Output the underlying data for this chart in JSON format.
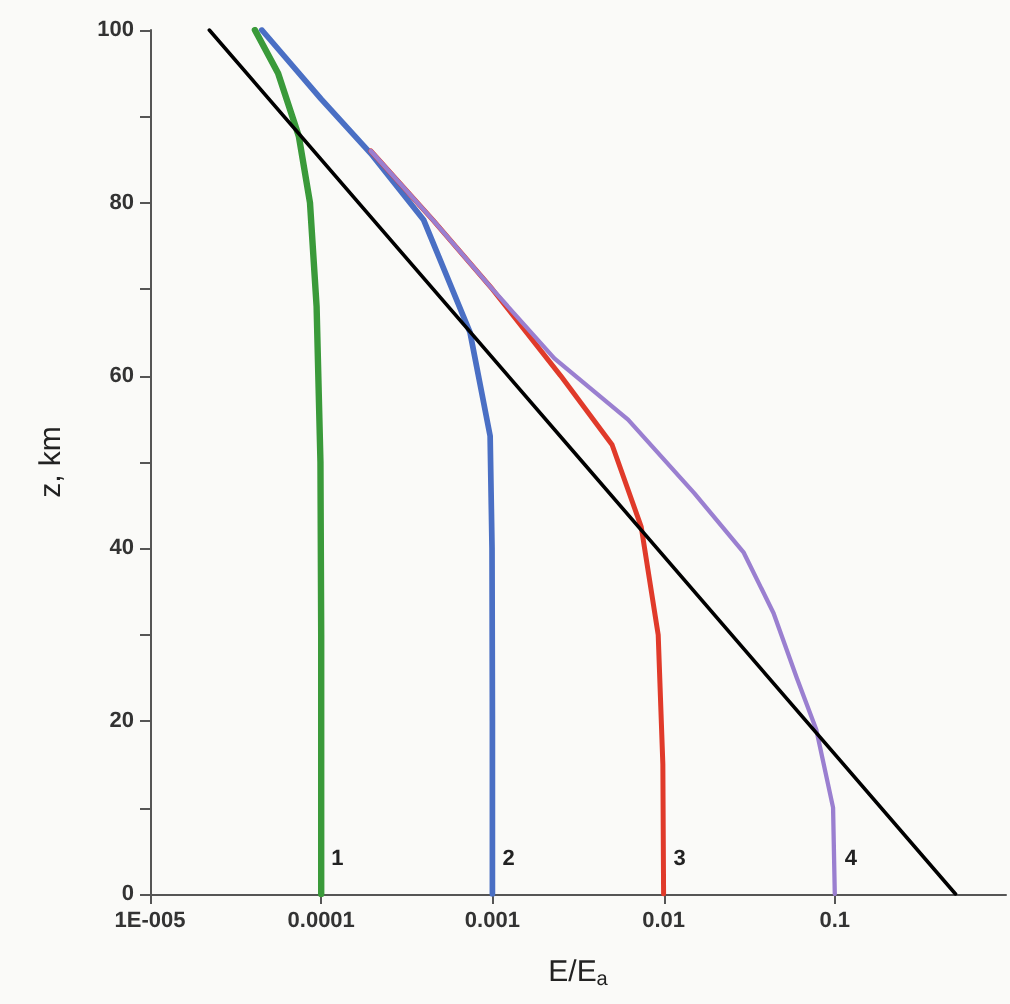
{
  "chart_data": {
    "type": "line",
    "xlabel": "E/E$_{a}$",
    "ylabel": "z, km",
    "log": "x",
    "xlim": [
      1e-05,
      1
    ],
    "ylim": [
      0,
      100
    ],
    "xticks": [
      {
        "value": 1e-05,
        "label": "1E-005"
      },
      0.0001,
      0.001,
      0.01,
      0.1
    ],
    "yticks": [
      0,
      {
        "value": 10,
        "label": null
      },
      20,
      {
        "value": 30,
        "label": null
      },
      40,
      {
        "value": 50,
        "label": null
      },
      60,
      {
        "value": 70,
        "label": null
      },
      80,
      {
        "value": 90,
        "label": null
      },
      100
    ],
    "grid": false,
    "marker": "none",
    "line_style": "solid",
    "series": [
      {
        "color": "#3a9a3a",
        "x": [
          4.1e-05,
          5.6e-05,
          7.4e-05,
          8.6e-05,
          9.4e-05,
          9.9e-05,
          0.0001,
          0.0001
        ],
        "values": [
          100,
          95,
          87.7,
          80,
          68,
          50,
          30,
          0
        ]
      },
      {
        "color": "#4a6fc4",
        "x": [
          4.5e-05,
          0.0001,
          0.000195,
          0.000397,
          0.00074,
          0.00097,
          0.000995,
          0.001,
          0.001
        ],
        "values": [
          100,
          92,
          85.7,
          78,
          65,
          53,
          40,
          20,
          0
        ]
      },
      {
        "color": "#e03a2a",
        "x": [
          0.000195,
          0.00045,
          0.001,
          0.0025,
          0.005,
          0.0074,
          0.0093,
          0.0099,
          0.01
        ],
        "values": [
          86,
          78,
          70,
          60,
          52,
          42.5,
          30,
          15,
          0
        ]
      },
      {
        "color": "#9a7fd0",
        "x": [
          0.000195,
          0.00045,
          0.001,
          0.0023,
          0.0062,
          0.0151,
          0.0294,
          0.0439,
          0.06,
          0.078,
          0.0977,
          0.1
        ],
        "values": [
          86,
          78,
          70,
          62,
          54.9,
          46.4,
          39.5,
          32.5,
          25,
          19,
          10,
          0
        ]
      },
      {
        "color": "#000000",
        "x": [
          2.22e-05,
          0.00336,
          0.507
        ],
        "values": [
          100,
          50,
          0
        ]
      }
    ],
    "annotations": [
      "1",
      "2",
      "3",
      "4"
    ]
  }
}
